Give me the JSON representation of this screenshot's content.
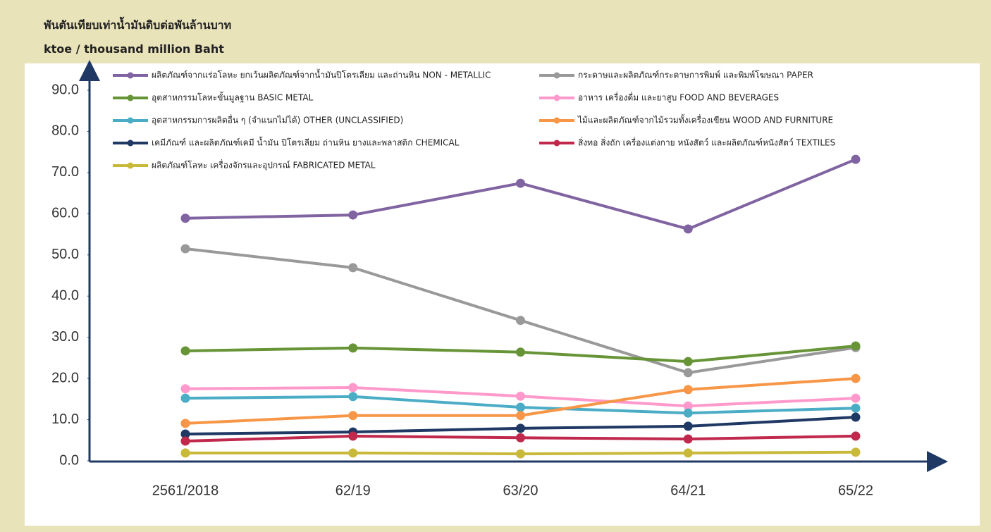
{
  "chart_data": {
    "type": "line",
    "title": "พันตันเทียบเท่าน้ำมันดิบต่อพันล้านบาท",
    "subtitle": "ktoe / thousand million Baht",
    "categories": [
      "2561/2018",
      "62/19",
      "63/20",
      "64/21",
      "65/22"
    ],
    "ylim": [
      0,
      90
    ],
    "yticks": [
      {
        "value": 0,
        "label": "0.0"
      },
      {
        "value": 10,
        "label": "10.0"
      },
      {
        "value": 20,
        "label": "20.0"
      },
      {
        "value": 30,
        "label": "30.0"
      },
      {
        "value": 40,
        "label": "40.0"
      },
      {
        "value": 50,
        "label": "50.0"
      },
      {
        "value": 60,
        "label": "60.0"
      },
      {
        "value": 70,
        "label": "70.0"
      },
      {
        "value": 80,
        "label": "80.0"
      },
      {
        "value": 90,
        "label": "90.0"
      }
    ],
    "grid": false,
    "series": [
      {
        "name": "ผลิตภัณฑ์จากแร่อโลหะ ยกเว้นผลิตภัณฑ์จากน้ำมันปิโตรเลียม และถ่านหิน NON - METALLIC",
        "color": "#8064a2",
        "values": [
          58.9,
          59.7,
          67.4,
          56.3,
          73.2
        ]
      },
      {
        "name": "กระดาษและผลิตภัณฑ์กระดาษการพิมพ์ และพิมพ์โฆษณา    PAPER",
        "color": "#999999",
        "values": [
          51.5,
          46.9,
          34.1,
          21.4,
          27.5
        ]
      },
      {
        "name": "อุตสาหกรรมโลหะขั้นมูลฐาน  BASIC METAL",
        "color": "#669436",
        "values": [
          26.7,
          27.4,
          26.4,
          24.1,
          27.9
        ]
      },
      {
        "name": "อาหาร เครื่องดื่ม และยาสูบ  FOOD AND BEVERAGES",
        "color": "#ff99cc",
        "values": [
          17.5,
          17.8,
          15.7,
          13.3,
          15.2
        ]
      },
      {
        "name": "อุตสาหกรรมการผลิตอื่น ๆ (จำแนกไม่ได้)    OTHER (UNCLASSIFIED)",
        "color": "#4bacc6",
        "values": [
          15.2,
          15.6,
          13.0,
          11.6,
          12.8
        ]
      },
      {
        "name": "ไม้และผลิตภัณฑ์จากไม้รวมทั้งเครื่องเขียน  WOOD AND FURNITURE",
        "color": "#f79646",
        "values": [
          9.1,
          11.0,
          11.0,
          17.3,
          20.0
        ]
      },
      {
        "name": "เคมีภัณฑ์ และผลิตภัณฑ์เคมี น้ำมัน ปิโตรเลียม ถ่านหิน ยางและพลาสติก CHEMICAL",
        "color": "#1f3864",
        "values": [
          6.5,
          7.0,
          7.9,
          8.4,
          10.6
        ]
      },
      {
        "name": "สิ่งทอ สิ่งถัก เครื่องแต่งกาย หนังสัตว์ และผลิตภัณฑ์หนังสัตว์  TEXTILES",
        "color": "#c0284c",
        "values": [
          4.8,
          6.0,
          5.6,
          5.3,
          6.0
        ]
      },
      {
        "name": "ผลิตภัณฑ์โลหะ เครื่องจักรและอุปกรณ์  FABRICATED METAL",
        "color": "#c9b93a",
        "values": [
          1.9,
          1.9,
          1.7,
          1.9,
          2.1
        ]
      }
    ]
  }
}
